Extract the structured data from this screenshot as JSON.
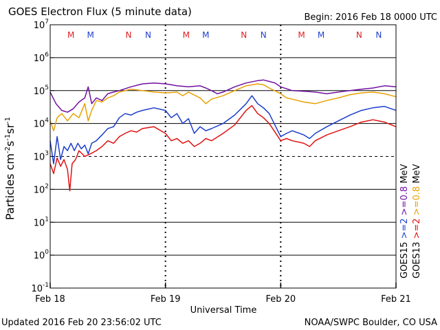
{
  "header": {
    "title": "GOES Electron Flux (5 minute data)",
    "begin": "Begin: 2016 Feb 18 0000 UTC"
  },
  "footer": {
    "updated": "Updated 2016 Feb 20 23:56:02 UTC",
    "credit": "NOAA/SWPC Boulder, CO USA"
  },
  "chart_data": {
    "type": "line",
    "title": "GOES Electron Flux (5 minute data)",
    "xlabel": "Universal Time",
    "ylabel": "Particles cm-2s-1sr-1",
    "yscale": "log",
    "ylim": [
      0.1,
      10000000
    ],
    "xlim_days": [
      0,
      3
    ],
    "y_ticks": [
      {
        "base": "10",
        "exp": "-1"
      },
      {
        "base": "10",
        "exp": "0"
      },
      {
        "base": "10",
        "exp": "1"
      },
      {
        "base": "10",
        "exp": "2"
      },
      {
        "base": "10",
        "exp": "3"
      },
      {
        "base": "10",
        "exp": "4"
      },
      {
        "base": "10",
        "exp": "5"
      },
      {
        "base": "10",
        "exp": "6"
      },
      {
        "base": "10",
        "exp": "7"
      }
    ],
    "x_ticks": [
      {
        "day": 0,
        "label": "Feb 18"
      },
      {
        "day": 1,
        "label": "Feb 19"
      },
      {
        "day": 2,
        "label": "Feb 20"
      },
      {
        "day": 3,
        "label": "Feb 21"
      }
    ],
    "threshold": 1000,
    "markers": [
      {
        "day": 0.18,
        "label": "M",
        "color": "#e02020"
      },
      {
        "day": 0.35,
        "label": "M",
        "color": "#2040d0"
      },
      {
        "day": 0.68,
        "label": "N",
        "color": "#e02020"
      },
      {
        "day": 0.85,
        "label": "N",
        "color": "#2040d0"
      },
      {
        "day": 1.18,
        "label": "M",
        "color": "#e02020"
      },
      {
        "day": 1.35,
        "label": "M",
        "color": "#2040d0"
      },
      {
        "day": 1.68,
        "label": "N",
        "color": "#e02020"
      },
      {
        "day": 1.85,
        "label": "N",
        "color": "#2040d0"
      },
      {
        "day": 2.18,
        "label": "M",
        "color": "#e02020"
      },
      {
        "day": 2.35,
        "label": "M",
        "color": "#2040d0"
      },
      {
        "day": 2.68,
        "label": "N",
        "color": "#e02020"
      },
      {
        "day": 2.85,
        "label": "N",
        "color": "#2040d0"
      }
    ],
    "series": [
      {
        "name": "GOES15 >=0.8 MeV",
        "color": "#7010a0",
        "points": [
          [
            0,
            90000
          ],
          [
            0.05,
            40000
          ],
          [
            0.1,
            25000
          ],
          [
            0.15,
            22000
          ],
          [
            0.2,
            28000
          ],
          [
            0.25,
            45000
          ],
          [
            0.3,
            60000
          ],
          [
            0.33,
            130000
          ],
          [
            0.36,
            40000
          ],
          [
            0.4,
            60000
          ],
          [
            0.45,
            50000
          ],
          [
            0.5,
            80000
          ],
          [
            0.55,
            90000
          ],
          [
            0.6,
            100000
          ],
          [
            0.7,
            130000
          ],
          [
            0.8,
            160000
          ],
          [
            0.9,
            170000
          ],
          [
            1.0,
            160000
          ],
          [
            1.05,
            150000
          ],
          [
            1.1,
            140000
          ],
          [
            1.2,
            130000
          ],
          [
            1.3,
            140000
          ],
          [
            1.35,
            120000
          ],
          [
            1.4,
            100000
          ],
          [
            1.45,
            80000
          ],
          [
            1.5,
            90000
          ],
          [
            1.6,
            130000
          ],
          [
            1.7,
            170000
          ],
          [
            1.8,
            200000
          ],
          [
            1.85,
            210000
          ],
          [
            1.9,
            190000
          ],
          [
            1.95,
            170000
          ],
          [
            2.0,
            130000
          ],
          [
            2.1,
            100000
          ],
          [
            2.2,
            95000
          ],
          [
            2.3,
            90000
          ],
          [
            2.4,
            80000
          ],
          [
            2.5,
            90000
          ],
          [
            2.6,
            100000
          ],
          [
            2.7,
            110000
          ],
          [
            2.8,
            120000
          ],
          [
            2.9,
            140000
          ],
          [
            3.0,
            130000
          ]
        ]
      },
      {
        "name": "GOES13 >=0.8 MeV",
        "color": "#e8a000",
        "points": [
          [
            0,
            12000
          ],
          [
            0.03,
            6000
          ],
          [
            0.06,
            15000
          ],
          [
            0.1,
            20000
          ],
          [
            0.15,
            12000
          ],
          [
            0.2,
            20000
          ],
          [
            0.25,
            15000
          ],
          [
            0.3,
            40000
          ],
          [
            0.33,
            12000
          ],
          [
            0.36,
            25000
          ],
          [
            0.4,
            50000
          ],
          [
            0.45,
            45000
          ],
          [
            0.5,
            60000
          ],
          [
            0.55,
            70000
          ],
          [
            0.6,
            90000
          ],
          [
            0.7,
            110000
          ],
          [
            0.8,
            100000
          ],
          [
            0.9,
            90000
          ],
          [
            1.0,
            85000
          ],
          [
            1.1,
            90000
          ],
          [
            1.15,
            70000
          ],
          [
            1.2,
            90000
          ],
          [
            1.3,
            60000
          ],
          [
            1.35,
            40000
          ],
          [
            1.4,
            55000
          ],
          [
            1.5,
            70000
          ],
          [
            1.6,
            100000
          ],
          [
            1.7,
            140000
          ],
          [
            1.8,
            160000
          ],
          [
            1.85,
            150000
          ],
          [
            1.9,
            120000
          ],
          [
            2.0,
            80000
          ],
          [
            2.05,
            60000
          ],
          [
            2.1,
            55000
          ],
          [
            2.2,
            45000
          ],
          [
            2.3,
            40000
          ],
          [
            2.4,
            50000
          ],
          [
            2.5,
            60000
          ],
          [
            2.6,
            75000
          ],
          [
            2.7,
            85000
          ],
          [
            2.8,
            90000
          ],
          [
            2.9,
            80000
          ],
          [
            3.0,
            65000
          ]
        ]
      },
      {
        "name": "GOES15 >=2 MeV",
        "color": "#1a3ccc",
        "points": [
          [
            0,
            3000
          ],
          [
            0.03,
            600
          ],
          [
            0.06,
            4000
          ],
          [
            0.09,
            800
          ],
          [
            0.12,
            2000
          ],
          [
            0.15,
            1500
          ],
          [
            0.18,
            2500
          ],
          [
            0.21,
            1500
          ],
          [
            0.24,
            2500
          ],
          [
            0.27,
            1700
          ],
          [
            0.3,
            2200
          ],
          [
            0.33,
            1200
          ],
          [
            0.36,
            2500
          ],
          [
            0.4,
            3000
          ],
          [
            0.45,
            4500
          ],
          [
            0.5,
            7000
          ],
          [
            0.55,
            8000
          ],
          [
            0.6,
            15000
          ],
          [
            0.65,
            20000
          ],
          [
            0.7,
            18000
          ],
          [
            0.75,
            22000
          ],
          [
            0.8,
            25000
          ],
          [
            0.9,
            30000
          ],
          [
            1.0,
            25000
          ],
          [
            1.05,
            15000
          ],
          [
            1.1,
            20000
          ],
          [
            1.15,
            10000
          ],
          [
            1.2,
            14000
          ],
          [
            1.25,
            5000
          ],
          [
            1.3,
            8000
          ],
          [
            1.35,
            6000
          ],
          [
            1.4,
            7000
          ],
          [
            1.5,
            10000
          ],
          [
            1.6,
            18000
          ],
          [
            1.7,
            40000
          ],
          [
            1.75,
            70000
          ],
          [
            1.8,
            40000
          ],
          [
            1.85,
            30000
          ],
          [
            1.9,
            20000
          ],
          [
            2.0,
            4000
          ],
          [
            2.05,
            5000
          ],
          [
            2.1,
            6000
          ],
          [
            2.2,
            4500
          ],
          [
            2.25,
            3500
          ],
          [
            2.3,
            5000
          ],
          [
            2.4,
            8000
          ],
          [
            2.5,
            12000
          ],
          [
            2.6,
            18000
          ],
          [
            2.7,
            25000
          ],
          [
            2.8,
            30000
          ],
          [
            2.9,
            33000
          ],
          [
            3.0,
            25000
          ]
        ]
      },
      {
        "name": "GOES13 >=2 MeV",
        "color": "#e01010",
        "points": [
          [
            0,
            600
          ],
          [
            0.03,
            300
          ],
          [
            0.06,
            900
          ],
          [
            0.09,
            500
          ],
          [
            0.12,
            800
          ],
          [
            0.15,
            400
          ],
          [
            0.17,
            90
          ],
          [
            0.19,
            600
          ],
          [
            0.22,
            800
          ],
          [
            0.25,
            1500
          ],
          [
            0.3,
            1000
          ],
          [
            0.35,
            1200
          ],
          [
            0.4,
            1500
          ],
          [
            0.45,
            2000
          ],
          [
            0.5,
            3000
          ],
          [
            0.55,
            2500
          ],
          [
            0.6,
            4000
          ],
          [
            0.65,
            5000
          ],
          [
            0.7,
            6000
          ],
          [
            0.75,
            5500
          ],
          [
            0.8,
            7000
          ],
          [
            0.9,
            8000
          ],
          [
            1.0,
            5000
          ],
          [
            1.05,
            3000
          ],
          [
            1.1,
            3500
          ],
          [
            1.15,
            2500
          ],
          [
            1.2,
            3000
          ],
          [
            1.25,
            2000
          ],
          [
            1.3,
            2500
          ],
          [
            1.35,
            3500
          ],
          [
            1.4,
            3000
          ],
          [
            1.5,
            5000
          ],
          [
            1.6,
            9000
          ],
          [
            1.7,
            25000
          ],
          [
            1.75,
            35000
          ],
          [
            1.8,
            20000
          ],
          [
            1.85,
            15000
          ],
          [
            1.9,
            10000
          ],
          [
            2.0,
            3000
          ],
          [
            2.05,
            3500
          ],
          [
            2.1,
            3000
          ],
          [
            2.2,
            2500
          ],
          [
            2.25,
            2000
          ],
          [
            2.3,
            3000
          ],
          [
            2.4,
            4500
          ],
          [
            2.5,
            6000
          ],
          [
            2.6,
            8000
          ],
          [
            2.7,
            11000
          ],
          [
            2.8,
            13000
          ],
          [
            2.9,
            11000
          ],
          [
            3.0,
            8000
          ]
        ]
      }
    ],
    "legend": [
      {
        "part": "GOES13",
        "color": "#000000",
        "column": "left"
      },
      {
        "part": ">=2",
        "color": "#e01010",
        "column": "left"
      },
      {
        "part": ">=0.8",
        "color": "#e8a000",
        "column": "left"
      },
      {
        "part": "MeV",
        "color": "#000000",
        "column": "left"
      },
      {
        "part": "GOES15",
        "color": "#000000",
        "column": "right"
      },
      {
        "part": ">=2",
        "color": "#1a3ccc",
        "column": "right"
      },
      {
        "part": ">=0.8",
        "color": "#7010a0",
        "column": "right"
      },
      {
        "part": "MeV",
        "color": "#000000",
        "column": "right"
      }
    ]
  }
}
